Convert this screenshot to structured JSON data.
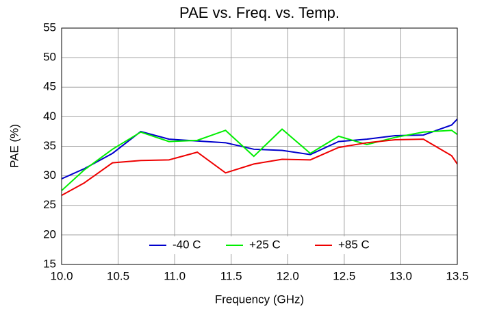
{
  "chart_data": {
    "type": "line",
    "title": "PAE vs. Freq. vs. Temp.",
    "x_label": "Frequency (GHz)",
    "y_label": "PAE (%)",
    "x": [
      10.0,
      10.2,
      10.45,
      10.7,
      10.95,
      11.2,
      11.45,
      11.7,
      11.95,
      12.2,
      12.45,
      12.7,
      12.95,
      13.2,
      13.45,
      13.5
    ],
    "series": [
      {
        "name": "-40 C",
        "color": "#0000cc",
        "values": [
          29.5,
          31.2,
          33.8,
          37.5,
          36.2,
          35.9,
          35.6,
          34.5,
          34.3,
          33.6,
          35.8,
          36.2,
          36.8,
          36.9,
          38.6,
          39.6
        ]
      },
      {
        "name": "+25 C",
        "color": "#00ee00",
        "values": [
          27.5,
          31.0,
          34.5,
          37.4,
          35.8,
          36.0,
          37.7,
          33.3,
          37.9,
          33.8,
          36.7,
          35.3,
          36.5,
          37.4,
          37.7,
          37.0
        ]
      },
      {
        "name": "+85 C",
        "color": "#ee0000",
        "values": [
          26.7,
          28.8,
          32.2,
          32.6,
          32.7,
          34.0,
          30.5,
          32.0,
          32.8,
          32.7,
          34.8,
          35.6,
          36.1,
          36.2,
          33.4,
          32.0
        ]
      }
    ],
    "xlim": [
      10.0,
      13.5
    ],
    "xticks": [
      {
        "value": 10.0,
        "label": "10.0"
      },
      10.5,
      {
        "value": 11.0,
        "label": "11.0"
      },
      11.5,
      {
        "value": 12.0,
        "label": "12.0"
      },
      12.5,
      {
        "value": 13.0,
        "label": "13.0"
      },
      13.5
    ],
    "ylim": [
      15,
      55
    ],
    "yticks": [
      15,
      20,
      25,
      30,
      35,
      40,
      45,
      50,
      55
    ],
    "grid": true,
    "legend": "bottom"
  }
}
